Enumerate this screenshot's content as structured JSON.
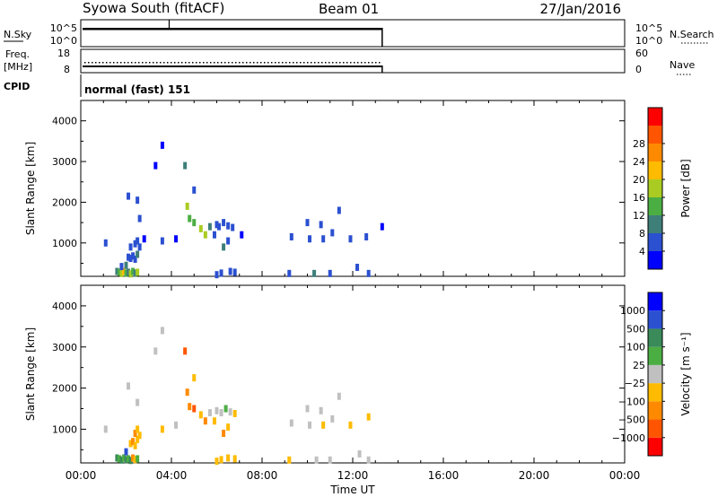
{
  "header": {
    "station": "Syowa South (fitACF)",
    "beam": "Beam 01",
    "date": "27/Jan/2016"
  },
  "panels": {
    "nsky": {
      "left_label": "N.Sky",
      "left_ticks": [
        "10^5",
        "10^0"
      ],
      "right_ticks": [
        "10^5",
        "10^0"
      ],
      "right_label": "N.Search"
    },
    "freq": {
      "left_label_1": "Freq.",
      "left_label_2": "[MHz]",
      "left_ticks": [
        "18",
        "8"
      ],
      "right_ticks": [
        "60",
        "0"
      ],
      "right_label": "Nave"
    },
    "cpid": {
      "label": "CPID",
      "mode": "normal (fast) 151"
    }
  },
  "chart_data": [
    {
      "type": "heatmap",
      "name": "power",
      "ylabel": "Slant Range [km]",
      "xlabel": "",
      "xlim": [
        0,
        24
      ],
      "ylim": [
        180,
        4500
      ],
      "x_ticks": [
        "00:00",
        "04:00",
        "08:00",
        "12:00",
        "16:00",
        "20:00",
        "00:00"
      ],
      "y_ticks": [
        1000,
        2000,
        3000,
        4000
      ],
      "colorbar": {
        "label": "Power [dB]",
        "ticks": [
          "4",
          "8",
          "12",
          "16",
          "20",
          "24",
          "28"
        ],
        "colors": [
          "#0000ff",
          "#2b50d0",
          "#3f7f7a",
          "#4bae43",
          "#aacc22",
          "#ffbb00",
          "#ff8a00",
          "#ff5500",
          "#ff0000"
        ]
      },
      "points": [
        [
          1.6,
          300,
          2
        ],
        [
          1.7,
          280,
          3
        ],
        [
          1.8,
          250,
          4
        ],
        [
          1.9,
          300,
          5
        ],
        [
          2.0,
          260,
          3
        ],
        [
          2.1,
          280,
          2
        ],
        [
          2.2,
          240,
          4
        ],
        [
          2.3,
          300,
          3
        ],
        [
          2.4,
          260,
          2
        ],
        [
          2.5,
          280,
          4
        ],
        [
          1.8,
          420,
          1
        ],
        [
          2.0,
          450,
          2
        ],
        [
          2.1,
          650,
          1
        ],
        [
          2.2,
          620,
          1
        ],
        [
          2.3,
          680,
          1
        ],
        [
          2.4,
          600,
          1
        ],
        [
          2.5,
          720,
          2
        ],
        [
          2.2,
          900,
          1
        ],
        [
          2.4,
          980,
          1
        ],
        [
          2.5,
          1050,
          1
        ],
        [
          2.6,
          900,
          1
        ],
        [
          1.1,
          1000,
          1
        ],
        [
          2.8,
          1100,
          0
        ],
        [
          2.1,
          2150,
          1
        ],
        [
          2.5,
          2050,
          1
        ],
        [
          2.6,
          1600,
          1
        ],
        [
          3.3,
          2900,
          0
        ],
        [
          3.6,
          3400,
          0
        ],
        [
          4.6,
          2900,
          2
        ],
        [
          5.0,
          2300,
          1
        ],
        [
          4.7,
          1900,
          4
        ],
        [
          4.8,
          1600,
          3
        ],
        [
          5.0,
          1500,
          3
        ],
        [
          5.3,
          1350,
          4
        ],
        [
          5.5,
          1200,
          4
        ],
        [
          5.7,
          1400,
          2
        ],
        [
          6.0,
          1450,
          1
        ],
        [
          6.1,
          1400,
          1
        ],
        [
          6.3,
          1500,
          1
        ],
        [
          6.5,
          1420,
          1
        ],
        [
          6.7,
          1380,
          1
        ],
        [
          6.5,
          1050,
          1
        ],
        [
          6.3,
          900,
          2
        ],
        [
          6.6,
          300,
          1
        ],
        [
          6.2,
          260,
          1
        ],
        [
          6.8,
          280,
          1
        ],
        [
          6.0,
          220,
          1
        ],
        [
          4.2,
          1100,
          0
        ],
        [
          3.6,
          1050,
          1
        ],
        [
          5.9,
          1200,
          1
        ],
        [
          7.1,
          1200,
          0
        ],
        [
          9.3,
          1150,
          1
        ],
        [
          9.2,
          250,
          1
        ],
        [
          10.0,
          1500,
          1
        ],
        [
          10.1,
          1100,
          1
        ],
        [
          10.3,
          250,
          2
        ],
        [
          10.6,
          1450,
          1
        ],
        [
          10.7,
          1100,
          1
        ],
        [
          11.1,
          1250,
          1
        ],
        [
          11.4,
          1800,
          1
        ],
        [
          11.9,
          1100,
          1
        ],
        [
          11.0,
          250,
          1
        ],
        [
          12.7,
          250,
          1
        ],
        [
          12.6,
          1150,
          1
        ],
        [
          12.2,
          400,
          1
        ],
        [
          13.3,
          1400,
          0
        ]
      ]
    },
    {
      "type": "heatmap",
      "name": "velocity",
      "ylabel": "Slant Range [km]",
      "xlabel": "Time UT",
      "xlim": [
        0,
        24
      ],
      "ylim": [
        180,
        4500
      ],
      "x_ticks": [
        "00:00",
        "04:00",
        "08:00",
        "12:00",
        "16:00",
        "20:00",
        "00:00"
      ],
      "y_ticks": [
        1000,
        2000,
        3000,
        4000
      ],
      "colorbar": {
        "label": "Velocity [m s⁻¹]",
        "ticks": [
          "1000",
          "500",
          "100",
          "25",
          "−25",
          "−100",
          "−500",
          "−1000"
        ],
        "colors": [
          "#0000ff",
          "#2b50d0",
          "#3a8a5a",
          "#4bae43",
          "#c0c0c0",
          "#ffbb00",
          "#ff8a00",
          "#ff5500",
          "#ff0000"
        ]
      },
      "points": [
        [
          1.6,
          300,
          2
        ],
        [
          1.7,
          280,
          3
        ],
        [
          1.8,
          250,
          2
        ],
        [
          1.9,
          300,
          3
        ],
        [
          2.0,
          260,
          2
        ],
        [
          2.1,
          280,
          3
        ],
        [
          2.2,
          240,
          2
        ],
        [
          2.3,
          300,
          6
        ],
        [
          2.4,
          260,
          5
        ],
        [
          2.5,
          280,
          3
        ],
        [
          2.0,
          450,
          1
        ],
        [
          2.2,
          650,
          5
        ],
        [
          2.3,
          700,
          6
        ],
        [
          2.4,
          600,
          5
        ],
        [
          2.5,
          750,
          5
        ],
        [
          2.4,
          900,
          6
        ],
        [
          2.5,
          1000,
          5
        ],
        [
          2.6,
          850,
          5
        ],
        [
          1.1,
          1000,
          4
        ],
        [
          2.1,
          2050,
          4
        ],
        [
          2.5,
          1650,
          4
        ],
        [
          3.3,
          2900,
          4
        ],
        [
          3.6,
          3400,
          4
        ],
        [
          4.6,
          2900,
          7
        ],
        [
          5.0,
          2250,
          5
        ],
        [
          4.7,
          1900,
          6
        ],
        [
          4.8,
          1550,
          6
        ],
        [
          5.0,
          1500,
          7
        ],
        [
          5.3,
          1350,
          5
        ],
        [
          5.5,
          1200,
          6
        ],
        [
          5.7,
          1400,
          4
        ],
        [
          6.0,
          1450,
          4
        ],
        [
          6.2,
          1400,
          4
        ],
        [
          6.4,
          1500,
          3
        ],
        [
          6.6,
          1420,
          4
        ],
        [
          6.8,
          1380,
          5
        ],
        [
          6.5,
          1050,
          5
        ],
        [
          6.3,
          900,
          6
        ],
        [
          6.5,
          300,
          5
        ],
        [
          6.2,
          260,
          5
        ],
        [
          6.8,
          280,
          5
        ],
        [
          6.0,
          220,
          5
        ],
        [
          4.2,
          1100,
          4
        ],
        [
          3.6,
          1000,
          5
        ],
        [
          5.9,
          1200,
          5
        ],
        [
          9.3,
          1150,
          4
        ],
        [
          9.2,
          250,
          5
        ],
        [
          10.0,
          1500,
          4
        ],
        [
          10.1,
          1100,
          4
        ],
        [
          10.4,
          250,
          4
        ],
        [
          10.6,
          1450,
          4
        ],
        [
          10.7,
          1100,
          5
        ],
        [
          11.1,
          1250,
          4
        ],
        [
          11.4,
          1800,
          4
        ],
        [
          11.9,
          1100,
          5
        ],
        [
          11.0,
          250,
          4
        ],
        [
          12.7,
          250,
          4
        ],
        [
          12.7,
          1300,
          5
        ],
        [
          12.3,
          400,
          4
        ]
      ]
    }
  ]
}
